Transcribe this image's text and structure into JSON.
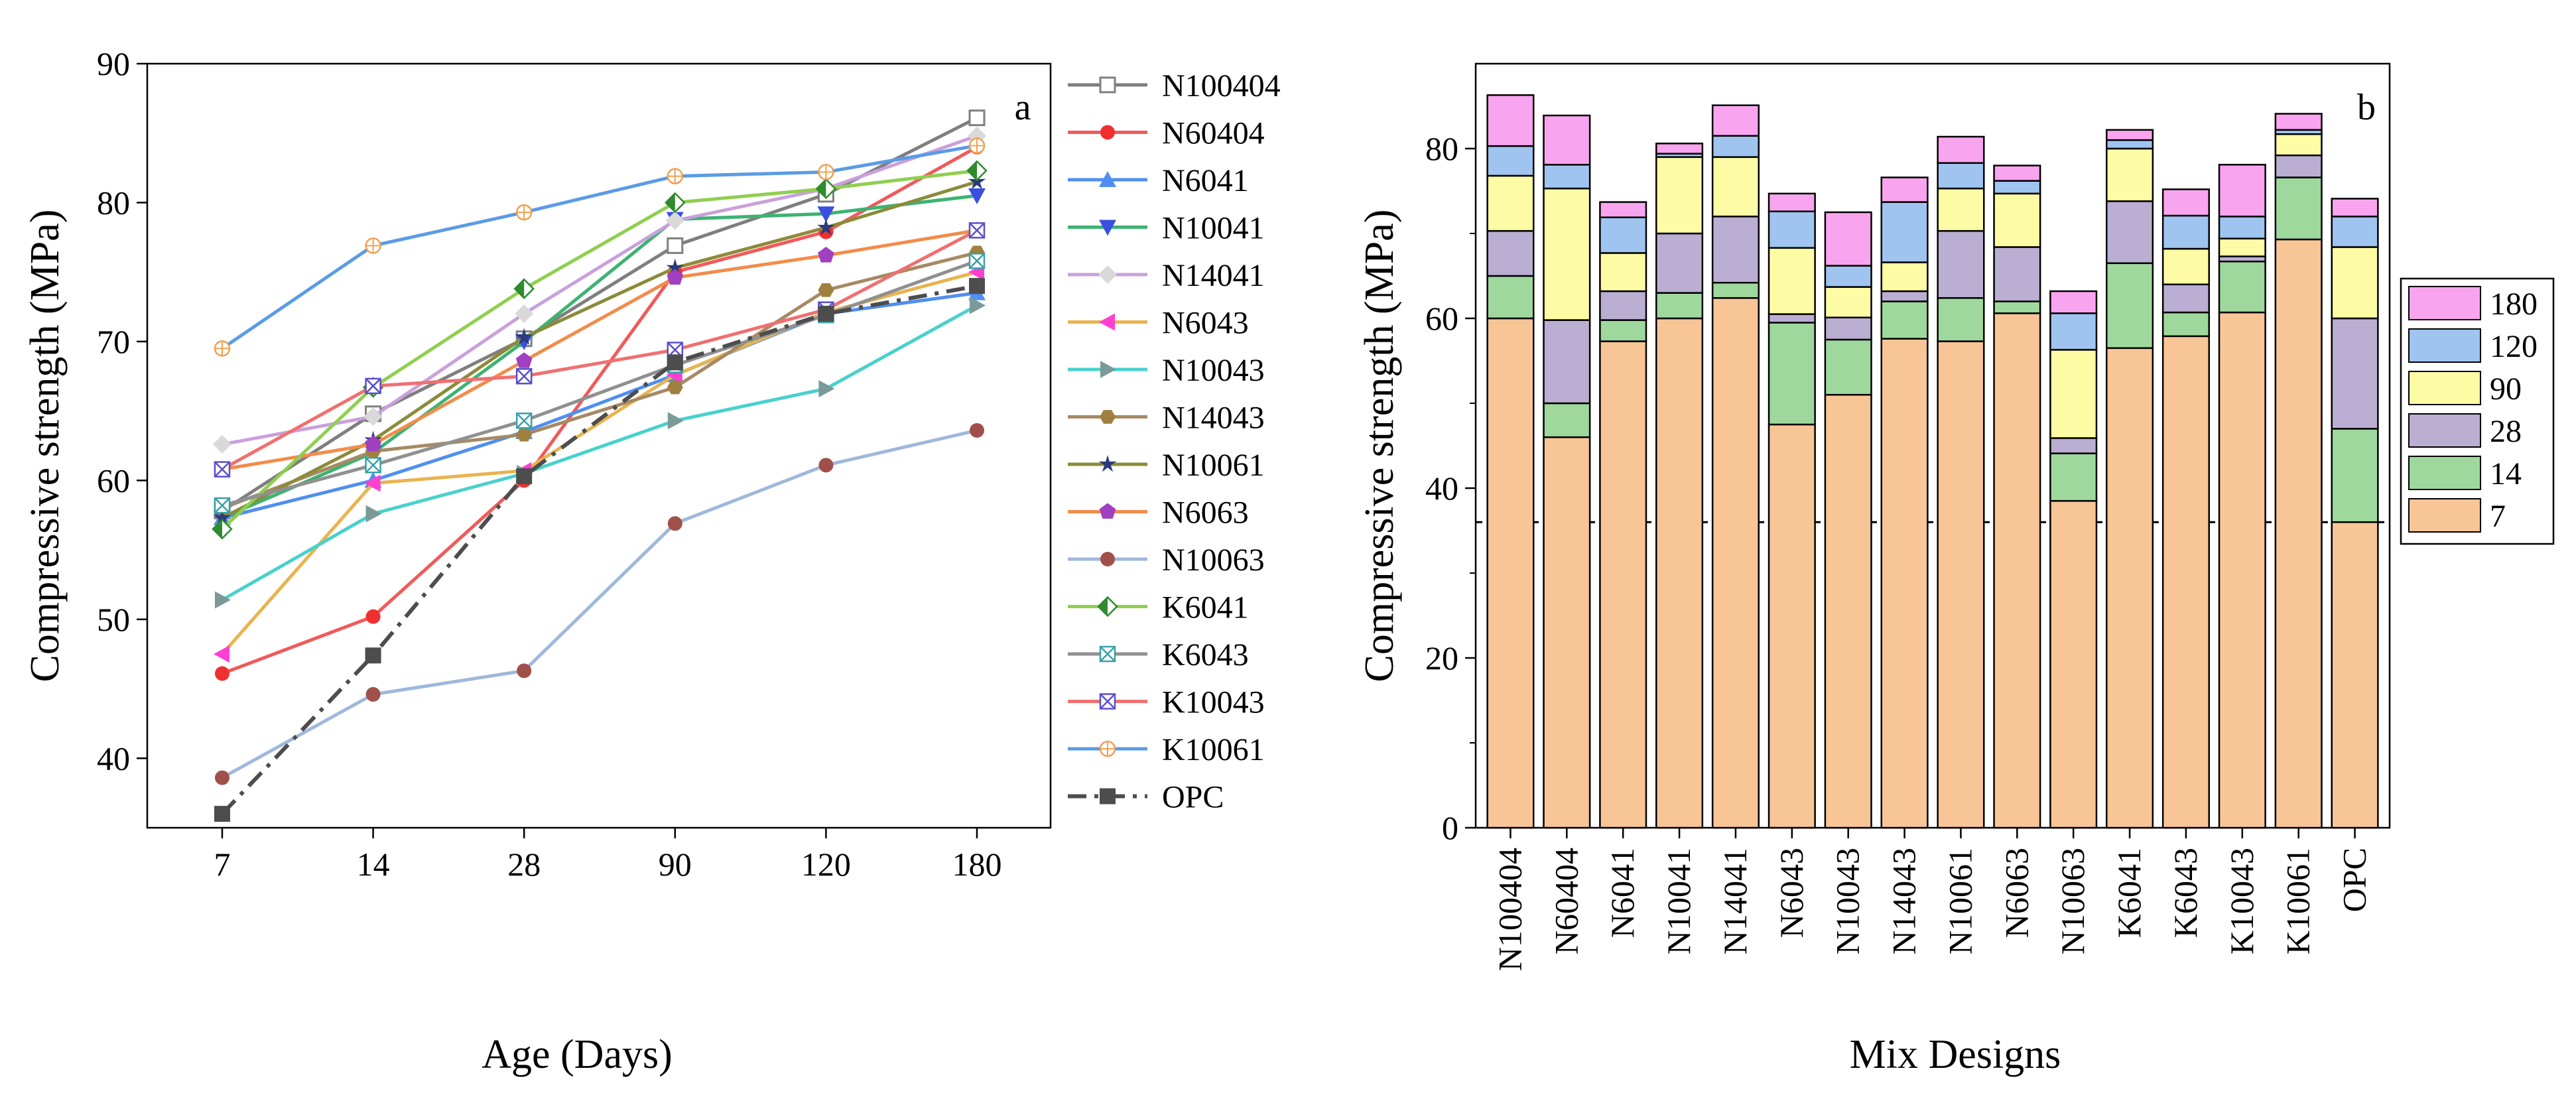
{
  "chart_data": [
    {
      "type": "line",
      "panel_label": "a",
      "title": "",
      "xlabel": "Age (Days)",
      "ylabel": "Compressive strength (MPa)",
      "categories": [
        "7",
        "14",
        "28",
        "90",
        "120",
        "180"
      ],
      "ylim": [
        35,
        90
      ],
      "yticks": [
        40,
        50,
        60,
        70,
        80,
        90
      ],
      "legend_position": "right",
      "series": [
        {
          "name": "N100404",
          "values": [
            57.8,
            64.8,
            70.2,
            76.9,
            80.6,
            86.1
          ],
          "color": "#7f7f7f",
          "marker": "square-open"
        },
        {
          "name": "N60404",
          "values": [
            46.1,
            50.2,
            60.0,
            75.0,
            77.9,
            84.0
          ],
          "color": "#f15a5a",
          "marker": "circle"
        },
        {
          "name": "N6041",
          "values": [
            57.3,
            60.0,
            63.5,
            67.6,
            72.0,
            73.5
          ],
          "color": "#4f8ff0",
          "marker": "triangle-up"
        },
        {
          "name": "N10041",
          "values": [
            57.3,
            62.0,
            70.0,
            78.8,
            79.2,
            80.5
          ],
          "color": "#3cb371",
          "marker": "triangle-down"
        },
        {
          "name": "N14041",
          "values": [
            62.6,
            64.6,
            72.0,
            78.7,
            81.0,
            84.8
          ],
          "color": "#c9a0dc",
          "marker": "diamond"
        },
        {
          "name": "N6043",
          "values": [
            47.5,
            59.8,
            60.7,
            67.6,
            72.1,
            75.0
          ],
          "color": "#e8b44f",
          "marker": "triangle-left"
        },
        {
          "name": "N10043",
          "values": [
            51.4,
            57.6,
            60.5,
            64.3,
            66.6,
            72.6
          ],
          "color": "#48d1cc",
          "marker": "triangle-right"
        },
        {
          "name": "N14043",
          "values": [
            58.0,
            62.1,
            63.3,
            66.7,
            73.7,
            76.4
          ],
          "color": "#a68a64",
          "marker": "hexagon"
        },
        {
          "name": "N10061",
          "values": [
            57.3,
            62.9,
            70.3,
            75.3,
            78.2,
            81.5
          ],
          "color": "#8b8b3a",
          "marker": "star"
        },
        {
          "name": "N6063",
          "values": [
            60.8,
            62.6,
            68.6,
            74.6,
            76.2,
            78.0
          ],
          "color": "#f28c4a",
          "marker": "pentagon"
        },
        {
          "name": "N10063",
          "values": [
            38.6,
            44.6,
            46.3,
            56.9,
            61.1,
            63.6
          ],
          "color": "#9fb8dc",
          "marker": "circle"
        },
        {
          "name": "K6041",
          "values": [
            56.5,
            66.7,
            73.8,
            80.0,
            81.0,
            82.3
          ],
          "color": "#8fcf4f",
          "marker": "diamond-half"
        },
        {
          "name": "K6043",
          "values": [
            58.2,
            61.1,
            64.3,
            68.3,
            71.9,
            75.8
          ],
          "color": "#909090",
          "marker": "square-x"
        },
        {
          "name": "K10043",
          "values": [
            60.8,
            66.8,
            67.5,
            69.4,
            72.3,
            78.0
          ],
          "color": "#f07070",
          "marker": "square-x-blue"
        },
        {
          "name": "K10061",
          "values": [
            69.5,
            76.9,
            79.3,
            81.9,
            82.2,
            84.1
          ],
          "color": "#5b9be6",
          "marker": "circle-plus"
        },
        {
          "name": "OPC",
          "values": [
            36.0,
            47.4,
            60.3,
            68.5,
            72.0,
            74.0
          ],
          "color": "#4d4d4d",
          "marker": "square",
          "dashed": true
        }
      ]
    },
    {
      "type": "bar",
      "stacked": true,
      "panel_label": "b",
      "title": "",
      "xlabel": "Mix Designs",
      "ylabel": "Compressive strength (MPa)",
      "categories": [
        "N100404",
        "N60404",
        "N6041",
        "N10041",
        "N14041",
        "N6043",
        "N10043",
        "N14043",
        "N10061",
        "N6063",
        "N10063",
        "K6041",
        "K6043",
        "K10043",
        "K10061",
        "OPC"
      ],
      "ylim": [
        0,
        90
      ],
      "yticks": [
        0,
        20,
        40,
        60,
        80
      ],
      "reference_line": {
        "y": 36.0,
        "style": "dashed"
      },
      "legend_position": "right",
      "series": [
        {
          "name": "7",
          "color": "#f8c597",
          "values": [
            60.0,
            46.0,
            57.3,
            60.0,
            62.4,
            47.5,
            51.0,
            57.6,
            57.3,
            60.6,
            38.5,
            56.5,
            57.9,
            60.7,
            69.3,
            36.0
          ]
        },
        {
          "name": "14",
          "color": "#9fd89c",
          "values": [
            5.0,
            4.0,
            2.5,
            3.0,
            1.8,
            12.0,
            6.5,
            4.4,
            5.1,
            1.4,
            5.6,
            10.0,
            2.8,
            6.0,
            7.3,
            11.0
          ]
        },
        {
          "name": "28",
          "color": "#bbaed3",
          "values": [
            5.3,
            9.8,
            3.4,
            7.0,
            7.8,
            1.0,
            2.6,
            1.2,
            7.9,
            6.4,
            1.8,
            7.3,
            3.3,
            0.6,
            2.6,
            13.0
          ]
        },
        {
          "name": "90",
          "color": "#fdfba4",
          "values": [
            6.5,
            15.5,
            4.5,
            9.0,
            7.0,
            7.8,
            3.6,
            3.4,
            5.0,
            6.3,
            10.4,
            6.2,
            4.2,
            2.1,
            2.5,
            8.4
          ]
        },
        {
          "name": "120",
          "color": "#9fc4ef",
          "values": [
            3.5,
            2.8,
            4.2,
            0.4,
            2.5,
            4.3,
            2.5,
            7.1,
            3.0,
            1.5,
            4.3,
            1.0,
            3.9,
            2.6,
            0.5,
            3.6
          ]
        },
        {
          "name": "180",
          "color": "#f9a4ee",
          "values": [
            6.0,
            5.8,
            1.8,
            1.2,
            3.6,
            2.1,
            6.3,
            2.9,
            3.1,
            1.8,
            2.6,
            1.2,
            3.1,
            6.1,
            1.9,
            2.1
          ]
        }
      ]
    }
  ]
}
